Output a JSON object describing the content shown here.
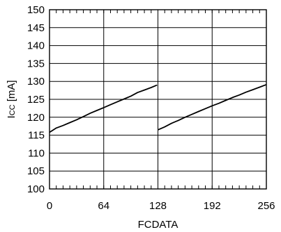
{
  "chart_data": {
    "type": "line",
    "title": "",
    "xlabel": "FCDATA",
    "ylabel_main": "I",
    "ylabel_sub": "CC",
    "ylabel_unit": " [mA]",
    "xlim": [
      0,
      256
    ],
    "ylim": [
      100,
      150
    ],
    "x_ticks": [
      0,
      64,
      128,
      192,
      256
    ],
    "y_ticks": [
      100,
      105,
      110,
      115,
      120,
      125,
      130,
      135,
      140,
      145,
      150
    ],
    "x_tick_labels": [
      "0",
      "64",
      "128",
      "192",
      "256"
    ],
    "y_tick_labels": [
      "100",
      "105",
      "110",
      "115",
      "120",
      "125",
      "130",
      "135",
      "140",
      "145",
      "150"
    ],
    "x_minor_step": 8,
    "grid": true,
    "line_color": "#000000",
    "series": [
      {
        "segments": [
          [
            [
              0,
              115.8
            ],
            [
              4,
              116.4
            ],
            [
              8,
              117.0
            ],
            [
              16,
              117.7
            ],
            [
              24,
              118.5
            ],
            [
              32,
              119.3
            ],
            [
              40,
              120.2
            ],
            [
              48,
              121.1
            ],
            [
              56,
              121.9
            ],
            [
              64,
              122.7
            ],
            [
              72,
              123.5
            ],
            [
              80,
              124.3
            ],
            [
              88,
              125.1
            ],
            [
              96,
              125.9
            ],
            [
              104,
              126.9
            ],
            [
              112,
              127.6
            ],
            [
              120,
              128.3
            ],
            [
              127,
              129.0
            ]
          ],
          [
            [
              128,
              116.5
            ],
            [
              136,
              117.3
            ],
            [
              144,
              118.3
            ],
            [
              152,
              119.1
            ],
            [
              160,
              120.0
            ],
            [
              168,
              120.8
            ],
            [
              176,
              121.6
            ],
            [
              184,
              122.4
            ],
            [
              192,
              123.2
            ],
            [
              200,
              123.9
            ],
            [
              208,
              124.7
            ],
            [
              216,
              125.5
            ],
            [
              224,
              126.2
            ],
            [
              232,
              127.0
            ],
            [
              240,
              127.7
            ],
            [
              248,
              128.4
            ],
            [
              256,
              129.1
            ]
          ]
        ]
      }
    ]
  }
}
